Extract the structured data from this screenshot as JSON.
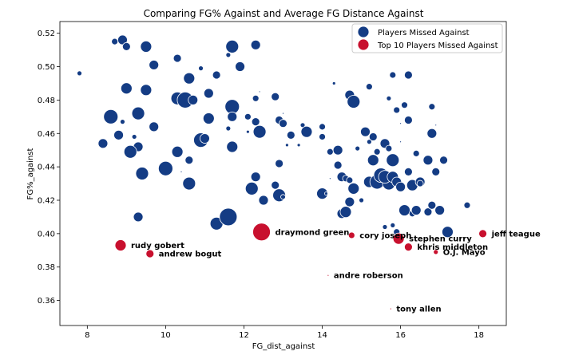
{
  "chart_data": {
    "type": "scatter",
    "title": "Comparing FG% Against and Average FG Distance Against",
    "xlabel": "FG_dist_against",
    "ylabel": "FG%_against",
    "xlim": [
      7.3,
      18.7
    ],
    "ylim": [
      0.345,
      0.527
    ],
    "xticks": [
      8,
      10,
      12,
      14,
      16,
      18
    ],
    "yticks": [
      0.36,
      0.38,
      0.4,
      0.42,
      0.44,
      0.46,
      0.48,
      0.5,
      0.52
    ],
    "grid": false,
    "legend_position": "top-right",
    "colors": {
      "missed": "#143c84",
      "top10": "#c8102e"
    },
    "series": [
      {
        "name": "Players Missed Against",
        "points": [
          {
            "x": 7.8,
            "y": 0.496,
            "s": 3
          },
          {
            "x": 8.7,
            "y": 0.515,
            "s": 4
          },
          {
            "x": 8.9,
            "y": 0.516,
            "s": 6
          },
          {
            "x": 9.0,
            "y": 0.512,
            "s": 5
          },
          {
            "x": 9.5,
            "y": 0.512,
            "s": 7
          },
          {
            "x": 10.3,
            "y": 0.505,
            "s": 5
          },
          {
            "x": 9.7,
            "y": 0.501,
            "s": 6
          },
          {
            "x": 10.9,
            "y": 0.499,
            "s": 3
          },
          {
            "x": 11.7,
            "y": 0.512,
            "s": 8
          },
          {
            "x": 11.6,
            "y": 0.507,
            "s": 3
          },
          {
            "x": 11.9,
            "y": 0.5,
            "s": 6
          },
          {
            "x": 12.3,
            "y": 0.513,
            "s": 6
          },
          {
            "x": 9.0,
            "y": 0.487,
            "s": 7
          },
          {
            "x": 9.5,
            "y": 0.486,
            "s": 7
          },
          {
            "x": 10.6,
            "y": 0.493,
            "s": 7
          },
          {
            "x": 11.3,
            "y": 0.495,
            "s": 5
          },
          {
            "x": 12.4,
            "y": 0.485,
            "s": 1
          },
          {
            "x": 12.3,
            "y": 0.481,
            "s": 4
          },
          {
            "x": 12.8,
            "y": 0.482,
            "s": 5
          },
          {
            "x": 8.6,
            "y": 0.47,
            "s": 9
          },
          {
            "x": 8.9,
            "y": 0.467,
            "s": 3
          },
          {
            "x": 9.3,
            "y": 0.472,
            "s": 8
          },
          {
            "x": 9.7,
            "y": 0.464,
            "s": 6
          },
          {
            "x": 10.3,
            "y": 0.481,
            "s": 8
          },
          {
            "x": 10.5,
            "y": 0.48,
            "s": 10
          },
          {
            "x": 10.7,
            "y": 0.48,
            "s": 6
          },
          {
            "x": 11.1,
            "y": 0.484,
            "s": 6
          },
          {
            "x": 11.7,
            "y": 0.476,
            "s": 9
          },
          {
            "x": 11.1,
            "y": 0.469,
            "s": 7
          },
          {
            "x": 11.7,
            "y": 0.47,
            "s": 6
          },
          {
            "x": 12.1,
            "y": 0.47,
            "s": 4
          },
          {
            "x": 12.3,
            "y": 0.467,
            "s": 5
          },
          {
            "x": 12.4,
            "y": 0.461,
            "s": 8
          },
          {
            "x": 12.9,
            "y": 0.468,
            "s": 5
          },
          {
            "x": 13.0,
            "y": 0.472,
            "s": 1
          },
          {
            "x": 13.0,
            "y": 0.466,
            "s": 5
          },
          {
            "x": 13.2,
            "y": 0.459,
            "s": 5
          },
          {
            "x": 13.5,
            "y": 0.465,
            "s": 3
          },
          {
            "x": 13.6,
            "y": 0.461,
            "s": 7
          },
          {
            "x": 13.1,
            "y": 0.453,
            "s": 2
          },
          {
            "x": 13.4,
            "y": 0.453,
            "s": 2
          },
          {
            "x": 14.0,
            "y": 0.464,
            "s": 4
          },
          {
            "x": 14.3,
            "y": 0.49,
            "s": 2
          },
          {
            "x": 12.1,
            "y": 0.461,
            "s": 2
          },
          {
            "x": 11.6,
            "y": 0.463,
            "s": 3
          },
          {
            "x": 8.8,
            "y": 0.459,
            "s": 6
          },
          {
            "x": 9.2,
            "y": 0.458,
            "s": 3
          },
          {
            "x": 8.4,
            "y": 0.454,
            "s": 6
          },
          {
            "x": 9.3,
            "y": 0.452,
            "s": 6
          },
          {
            "x": 9.1,
            "y": 0.449,
            "s": 8
          },
          {
            "x": 10.3,
            "y": 0.449,
            "s": 7
          },
          {
            "x": 10.6,
            "y": 0.444,
            "s": 5
          },
          {
            "x": 10.9,
            "y": 0.456,
            "s": 9
          },
          {
            "x": 11.0,
            "y": 0.457,
            "s": 6
          },
          {
            "x": 11.7,
            "y": 0.452,
            "s": 7
          },
          {
            "x": 12.9,
            "y": 0.442,
            "s": 5
          },
          {
            "x": 9.4,
            "y": 0.436,
            "s": 8
          },
          {
            "x": 10.0,
            "y": 0.439,
            "s": 9
          },
          {
            "x": 10.4,
            "y": 0.437,
            "s": 1
          },
          {
            "x": 10.6,
            "y": 0.43,
            "s": 8
          },
          {
            "x": 12.3,
            "y": 0.434,
            "s": 6
          },
          {
            "x": 12.2,
            "y": 0.427,
            "s": 8
          },
          {
            "x": 12.5,
            "y": 0.42,
            "s": 6
          },
          {
            "x": 12.8,
            "y": 0.429,
            "s": 5
          },
          {
            "x": 12.9,
            "y": 0.423,
            "s": 8
          },
          {
            "x": 14.0,
            "y": 0.424,
            "s": 7
          },
          {
            "x": 14.1,
            "y": 0.424,
            "s": 2
          },
          {
            "x": 14.0,
            "y": 0.458,
            "s": 4
          },
          {
            "x": 14.2,
            "y": 0.449,
            "s": 4
          },
          {
            "x": 14.2,
            "y": 0.433,
            "s": 1
          },
          {
            "x": 14.4,
            "y": 0.45,
            "s": 6
          },
          {
            "x": 14.4,
            "y": 0.441,
            "s": 5
          },
          {
            "x": 14.5,
            "y": 0.434,
            "s": 6
          },
          {
            "x": 14.6,
            "y": 0.433,
            "s": 4
          },
          {
            "x": 14.7,
            "y": 0.432,
            "s": 4
          },
          {
            "x": 14.8,
            "y": 0.427,
            "s": 7
          },
          {
            "x": 14.7,
            "y": 0.419,
            "s": 6
          },
          {
            "x": 14.5,
            "y": 0.412,
            "s": 6
          },
          {
            "x": 14.6,
            "y": 0.413,
            "s": 7
          },
          {
            "x": 15.0,
            "y": 0.42,
            "s": 3
          },
          {
            "x": 14.7,
            "y": 0.483,
            "s": 6
          },
          {
            "x": 14.8,
            "y": 0.479,
            "s": 8
          },
          {
            "x": 14.9,
            "y": 0.451,
            "s": 3
          },
          {
            "x": 15.1,
            "y": 0.461,
            "s": 6
          },
          {
            "x": 15.2,
            "y": 0.455,
            "s": 3
          },
          {
            "x": 15.3,
            "y": 0.458,
            "s": 5
          },
          {
            "x": 15.4,
            "y": 0.449,
            "s": 4
          },
          {
            "x": 15.2,
            "y": 0.488,
            "s": 4
          },
          {
            "x": 15.3,
            "y": 0.444,
            "s": 7
          },
          {
            "x": 15.2,
            "y": 0.431,
            "s": 7
          },
          {
            "x": 15.4,
            "y": 0.431,
            "s": 9
          },
          {
            "x": 15.5,
            "y": 0.435,
            "s": 9
          },
          {
            "x": 15.6,
            "y": 0.454,
            "s": 6
          },
          {
            "x": 15.7,
            "y": 0.451,
            "s": 4
          },
          {
            "x": 15.7,
            "y": 0.481,
            "s": 3
          },
          {
            "x": 15.8,
            "y": 0.495,
            "s": 4
          },
          {
            "x": 15.9,
            "y": 0.474,
            "s": 4
          },
          {
            "x": 16.0,
            "y": 0.466,
            "s": 1
          },
          {
            "x": 16.0,
            "y": 0.455,
            "s": 1
          },
          {
            "x": 15.8,
            "y": 0.444,
            "s": 8
          },
          {
            "x": 15.7,
            "y": 0.43,
            "s": 8
          },
          {
            "x": 15.6,
            "y": 0.434,
            "s": 8
          },
          {
            "x": 15.8,
            "y": 0.434,
            "s": 7
          },
          {
            "x": 15.9,
            "y": 0.431,
            "s": 6
          },
          {
            "x": 16.0,
            "y": 0.428,
            "s": 6
          },
          {
            "x": 16.1,
            "y": 0.477,
            "s": 4
          },
          {
            "x": 16.2,
            "y": 0.468,
            "s": 5
          },
          {
            "x": 16.2,
            "y": 0.495,
            "s": 5
          },
          {
            "x": 16.2,
            "y": 0.437,
            "s": 5
          },
          {
            "x": 16.3,
            "y": 0.429,
            "s": 7
          },
          {
            "x": 16.4,
            "y": 0.448,
            "s": 4
          },
          {
            "x": 16.5,
            "y": 0.431,
            "s": 6
          },
          {
            "x": 16.5,
            "y": 0.43,
            "s": 4
          },
          {
            "x": 16.7,
            "y": 0.444,
            "s": 6
          },
          {
            "x": 16.8,
            "y": 0.476,
            "s": 4
          },
          {
            "x": 16.8,
            "y": 0.46,
            "s": 6
          },
          {
            "x": 16.9,
            "y": 0.465,
            "s": 1
          },
          {
            "x": 16.9,
            "y": 0.437,
            "s": 5
          },
          {
            "x": 17.1,
            "y": 0.444,
            "s": 5
          },
          {
            "x": 16.1,
            "y": 0.414,
            "s": 7
          },
          {
            "x": 16.3,
            "y": 0.412,
            "s": 4
          },
          {
            "x": 16.4,
            "y": 0.414,
            "s": 6
          },
          {
            "x": 16.7,
            "y": 0.413,
            "s": 5
          },
          {
            "x": 16.8,
            "y": 0.417,
            "s": 5
          },
          {
            "x": 17.0,
            "y": 0.414,
            "s": 6
          },
          {
            "x": 15.8,
            "y": 0.405,
            "s": 3
          },
          {
            "x": 15.9,
            "y": 0.401,
            "s": 4
          },
          {
            "x": 15.6,
            "y": 0.404,
            "s": 3
          },
          {
            "x": 17.2,
            "y": 0.401,
            "s": 7
          },
          {
            "x": 17.7,
            "y": 0.417,
            "s": 4
          },
          {
            "x": 9.3,
            "y": 0.41,
            "s": 6
          },
          {
            "x": 11.3,
            "y": 0.406,
            "s": 8
          },
          {
            "x": 11.6,
            "y": 0.41,
            "s": 11
          },
          {
            "x": 13.0,
            "y": 0.422,
            "s": 3
          }
        ]
      },
      {
        "name": "Top 10 Players Missed Against",
        "points": [
          {
            "x": 8.85,
            "y": 0.393,
            "s": 7,
            "label": "rudy gobert"
          },
          {
            "x": 9.6,
            "y": 0.388,
            "s": 5,
            "label": "andrew bogut"
          },
          {
            "x": 12.45,
            "y": 0.401,
            "s": 11,
            "label": "draymond green"
          },
          {
            "x": 14.75,
            "y": 0.399,
            "s": 4,
            "label": "cory joseph"
          },
          {
            "x": 15.95,
            "y": 0.397,
            "s": 7,
            "label": "stephen curry"
          },
          {
            "x": 16.2,
            "y": 0.392,
            "s": 5,
            "label": "khris middleton"
          },
          {
            "x": 16.9,
            "y": 0.389,
            "s": 3,
            "label": "O.J. Mayo"
          },
          {
            "x": 18.1,
            "y": 0.4,
            "s": 5,
            "label": "jeff teague"
          },
          {
            "x": 14.15,
            "y": 0.375,
            "s": 1,
            "label": "andre roberson"
          },
          {
            "x": 15.75,
            "y": 0.355,
            "s": 1,
            "label": "tony allen"
          }
        ]
      }
    ]
  }
}
